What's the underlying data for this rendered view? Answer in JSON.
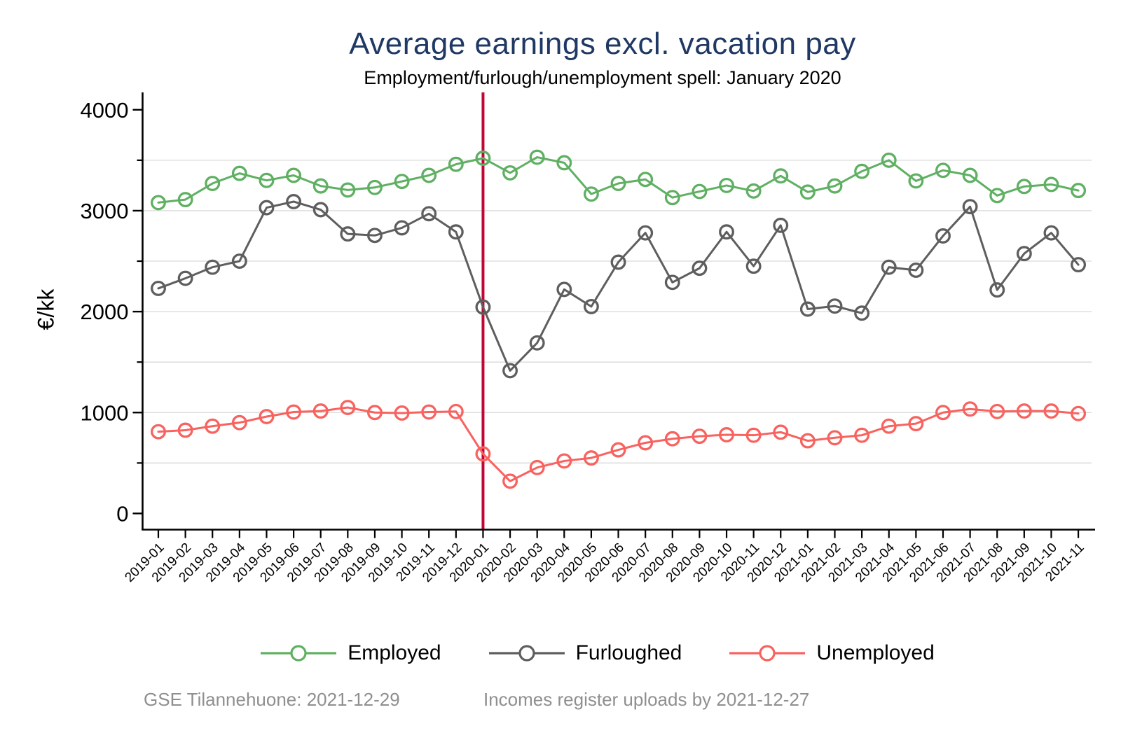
{
  "page": {
    "background": "#ffffff"
  },
  "header": {
    "title": "Average earnings excl. vacation pay",
    "subtitle": "Employment/furlough/unemployment spell: January 2020",
    "title_color": "#1f3864"
  },
  "footer": {
    "left": "GSE Tilannehuone: 2021-12-29",
    "right": "Incomes register uploads by 2021-12-27",
    "color": "#8f8f8f"
  },
  "chart_data": {
    "type": "line",
    "title": "Average earnings excl. vacation pay",
    "subtitle": "Employment/furlough/unemployment spell: January 2020",
    "xlabel": "",
    "ylabel": "€/kk",
    "ylim": [
      0,
      4000
    ],
    "y_major_ticks": [
      0,
      1000,
      2000,
      3000,
      4000
    ],
    "y_minor_ticks": [
      500,
      1500,
      2500,
      3500
    ],
    "gridline_values": [
      500,
      1000,
      1500,
      2000,
      2500,
      3000,
      3500
    ],
    "grid_color": "#d9d9d9",
    "axis_color": "#000000",
    "legend_position": "bottom",
    "grid": true,
    "categories": [
      "2019-01",
      "2019-02",
      "2019-03",
      "2019-04",
      "2019-05",
      "2019-06",
      "2019-07",
      "2019-08",
      "2019-09",
      "2019-10",
      "2019-11",
      "2019-12",
      "2020-01",
      "2020-02",
      "2020-03",
      "2020-04",
      "2020-05",
      "2020-06",
      "2020-07",
      "2020-08",
      "2020-09",
      "2020-10",
      "2020-11",
      "2020-12",
      "2021-01",
      "2021-02",
      "2021-03",
      "2021-04",
      "2021-05",
      "2021-06",
      "2021-07",
      "2021-08",
      "2021-09",
      "2021-10",
      "2021-11"
    ],
    "series": [
      {
        "name": "Employed",
        "color": "#5fb062",
        "values": [
          3080,
          3110,
          3270,
          3370,
          3300,
          3350,
          3245,
          3205,
          3230,
          3290,
          3350,
          3460,
          3520,
          3375,
          3530,
          3475,
          3165,
          3270,
          3310,
          3130,
          3190,
          3250,
          3195,
          3345,
          3185,
          3245,
          3390,
          3500,
          3295,
          3400,
          3350,
          3150,
          3240,
          3260,
          3200
        ]
      },
      {
        "name": "Furloughed",
        "color": "#5e5e5e",
        "values": [
          2230,
          2330,
          2440,
          2500,
          3030,
          3090,
          3010,
          2770,
          2755,
          2830,
          2970,
          2790,
          2045,
          1415,
          1690,
          2220,
          2050,
          2490,
          2780,
          2290,
          2430,
          2790,
          2450,
          2855,
          2025,
          2055,
          1985,
          2440,
          2410,
          2750,
          3040,
          2215,
          2575,
          2780,
          2465
        ]
      },
      {
        "name": "Unemployed",
        "color": "#f8625f",
        "values": [
          810,
          825,
          865,
          900,
          960,
          1005,
          1015,
          1050,
          1000,
          995,
          1005,
          1010,
          590,
          320,
          455,
          520,
          550,
          630,
          700,
          740,
          765,
          780,
          775,
          805,
          720,
          750,
          775,
          865,
          890,
          1000,
          1035,
          1010,
          1015,
          1015,
          990
        ]
      }
    ],
    "vline": {
      "at": "2020-01",
      "color": "#c10534"
    }
  }
}
